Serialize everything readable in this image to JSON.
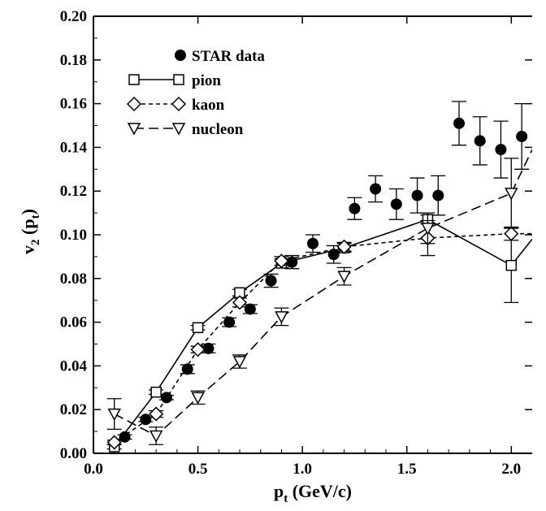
{
  "chart_data": {
    "type": "scatter",
    "xlabel": {
      "main": "p",
      "sub": "t",
      "rest": " (GeV/c)"
    },
    "ylabel": {
      "main": "v",
      "sub": "2",
      "paren_main": " (p",
      "paren_sub": "t",
      "close": ")"
    },
    "xlim": [
      0,
      2.1
    ],
    "ylim": [
      0,
      0.2
    ],
    "xticks": [
      "0.0",
      "0.5",
      "1.0",
      "1.5",
      "2.0"
    ],
    "yticks": [
      "0.00",
      "0.02",
      "0.04",
      "0.06",
      "0.08",
      "0.10",
      "0.12",
      "0.14",
      "0.16",
      "0.18",
      "0.20"
    ],
    "legend_position": "top-left",
    "series": [
      {
        "name": "STAR data",
        "marker": "filled-circle",
        "line": "none",
        "x": [
          0.15,
          0.25,
          0.35,
          0.45,
          0.55,
          0.65,
          0.75,
          0.85,
          0.95,
          1.05,
          1.15,
          1.25,
          1.35,
          1.45,
          1.55,
          1.65,
          1.75,
          1.85,
          1.95,
          2.05
        ],
        "y": [
          0.0075,
          0.0155,
          0.0255,
          0.0385,
          0.048,
          0.06,
          0.066,
          0.079,
          0.0875,
          0.096,
          0.091,
          0.112,
          0.121,
          0.114,
          0.118,
          0.118,
          0.151,
          0.143,
          0.139,
          0.145
        ],
        "err": [
          0.001,
          0.001,
          0.001,
          0.002,
          0.002,
          0.002,
          0.002,
          0.003,
          0.003,
          0.004,
          0.004,
          0.005,
          0.006,
          0.007,
          0.008,
          0.009,
          0.01,
          0.011,
          0.013,
          0.015
        ]
      },
      {
        "name": "pion",
        "marker": "open-square",
        "line": "solid",
        "x": [
          0.1,
          0.3,
          0.5,
          0.7,
          0.9,
          1.2,
          1.6,
          2.0,
          2.1
        ],
        "y": [
          0.003,
          0.028,
          0.0575,
          0.0735,
          0.087,
          0.094,
          0.107,
          0.086,
          0.098
        ],
        "err": [
          0.001,
          0.001,
          0.001,
          0.0015,
          0.002,
          0.002,
          0.002,
          0.017,
          0.0
        ]
      },
      {
        "name": "kaon",
        "marker": "open-diamond",
        "line": "dashed-short",
        "x": [
          0.1,
          0.3,
          0.5,
          0.7,
          0.9,
          1.2,
          1.6,
          2.0,
          2.1
        ],
        "y": [
          0.005,
          0.018,
          0.0475,
          0.069,
          0.088,
          0.0945,
          0.0985,
          0.1005,
          0.1005
        ],
        "err": [
          0.001,
          0.0015,
          0.0015,
          0.002,
          0.002,
          0.002,
          0.008,
          0.003,
          0.0
        ]
      },
      {
        "name": "nucleon",
        "marker": "open-triangle-down",
        "line": "dashed-long",
        "x": [
          0.1,
          0.3,
          0.5,
          0.7,
          0.9,
          1.2,
          1.6,
          2.0,
          2.1
        ],
        "y": [
          0.018,
          0.008,
          0.0255,
          0.042,
          0.0625,
          0.081,
          0.103,
          0.119,
          0.139
        ],
        "err": [
          0.007,
          0.004,
          0.003,
          0.003,
          0.004,
          0.004,
          0.007,
          0.016,
          0.0
        ]
      }
    ]
  }
}
